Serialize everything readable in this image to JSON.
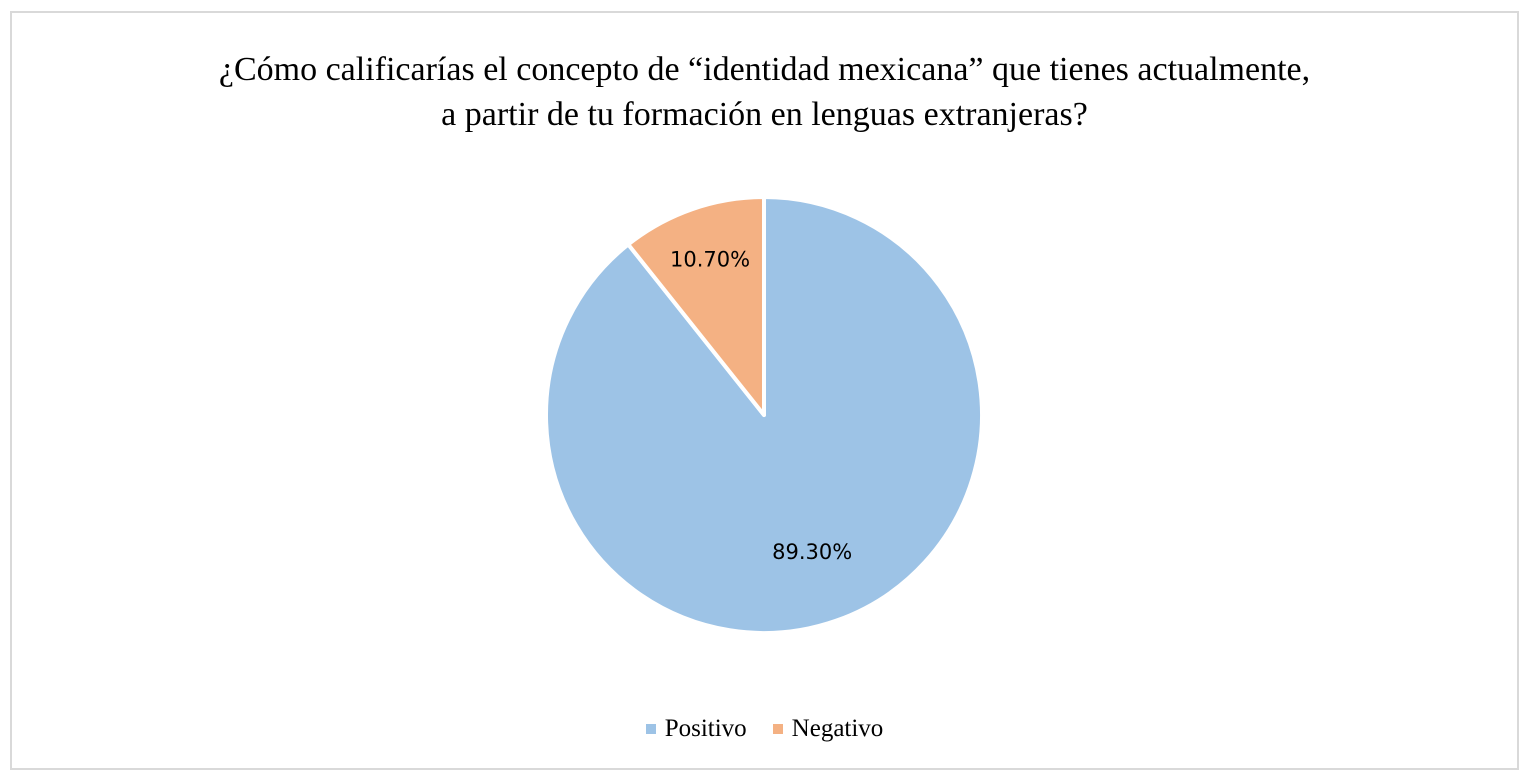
{
  "chart_data": {
    "type": "pie",
    "title_lines": [
      "¿Cómo calificarías el concepto de “identidad mexicana” que tienes actualmente,",
      "a partir de tu formación en lenguas extranjeras?"
    ],
    "slices": [
      {
        "name": "Positivo",
        "value": 89.3,
        "label": "89.30%",
        "color": "#9dc3e6"
      },
      {
        "name": "Negativo",
        "value": 10.7,
        "label": "10.70%",
        "color": "#f4b183"
      }
    ],
    "legend_position": "bottom"
  }
}
